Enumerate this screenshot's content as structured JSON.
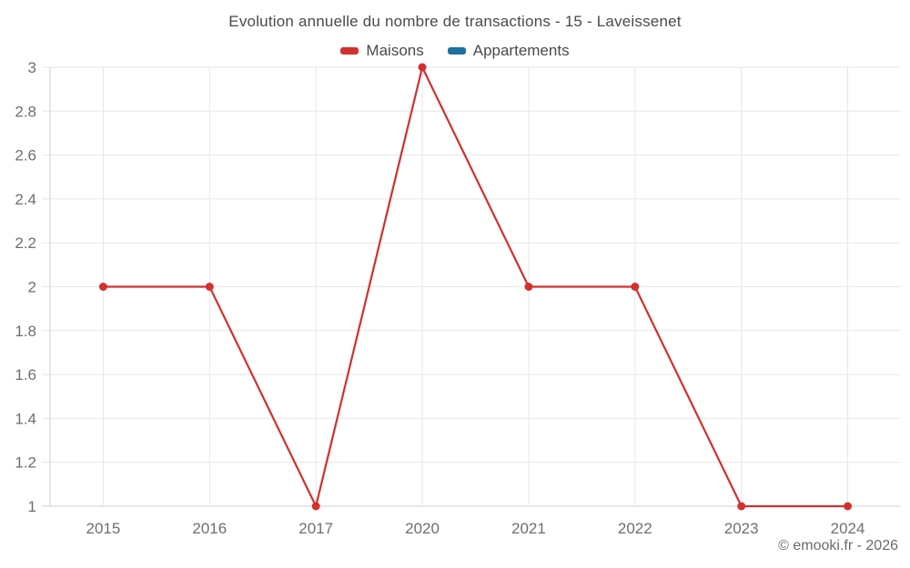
{
  "chart_data": {
    "type": "line",
    "title": "Evolution annuelle du nombre de transactions - 15 - Laveissenet",
    "categories": [
      "2015",
      "2016",
      "2017",
      "2020",
      "2021",
      "2022",
      "2023",
      "2024"
    ],
    "series": [
      {
        "name": "Maisons",
        "color": "#d2302e",
        "values": [
          2,
          2,
          1,
          3,
          2,
          2,
          1,
          1
        ]
      },
      {
        "name": "Appartements",
        "color": "#1c6f9f",
        "values": []
      }
    ],
    "xlabel": "",
    "ylabel": "",
    "ylim": [
      1,
      3
    ],
    "y_ticks": [
      1,
      1.2,
      1.4,
      1.6,
      1.8,
      2,
      2.2,
      2.4,
      2.6,
      2.8,
      3
    ],
    "y_tick_labels": [
      "1",
      "1.2",
      "1.4",
      "1.6",
      "1.8",
      "2",
      "2.2",
      "2.4",
      "2.6",
      "2.8",
      "3"
    ],
    "grid": true,
    "legend_position": "top",
    "marker": "circle"
  },
  "footer": {
    "credit": "© emooki.fr - 2026"
  }
}
